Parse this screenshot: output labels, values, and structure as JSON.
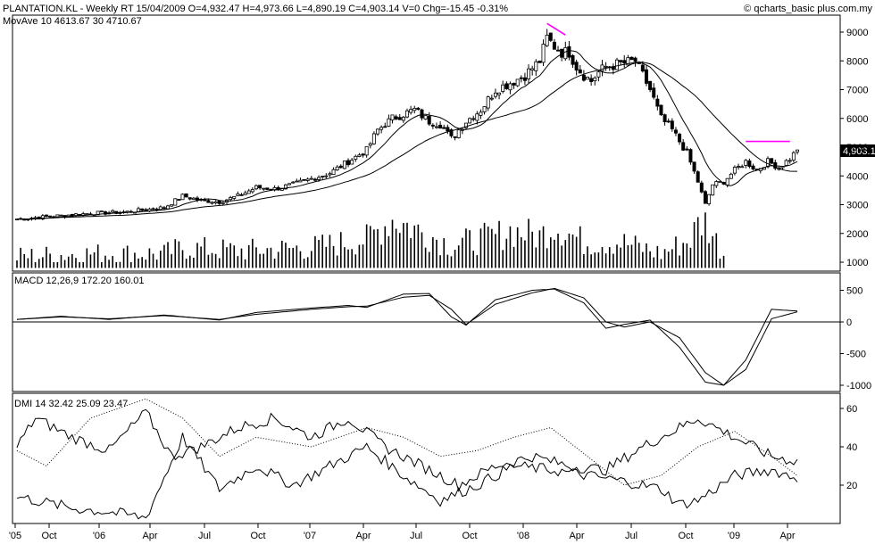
{
  "header": {
    "title": "PLANTATION.KL - Weekly RT  15/04/2009  O=4,932.47  H=4,973.66  L=4,890.19  C=4,903.14  V=0  Chg=-15.45  -0.31%",
    "mov_avg": "MovAve 10  4613.67   30  4710.67",
    "copyright": "© qcharts_basic plus.com.my"
  },
  "price_tag": "4,903.1",
  "chart_data": [
    {
      "type": "candlestick",
      "title": "PLANTATION.KL - Weekly RT",
      "y_ticks": [
        "9000",
        "8000",
        "7000",
        "6000",
        "5000",
        "4000",
        "3000",
        "2000",
        "1000"
      ],
      "ylim": [
        800,
        9500
      ],
      "x_ticks": [
        "'05",
        "Oct",
        "'06",
        "Apr",
        "Jul",
        "Oct",
        "'07",
        "Apr",
        "Jul",
        "Oct",
        "'08",
        "Apr",
        "Jul",
        "Oct",
        "'09",
        "Apr"
      ],
      "close_anchors": [
        [
          0,
          2500
        ],
        [
          10,
          2600
        ],
        [
          20,
          2700
        ],
        [
          30,
          2750
        ],
        [
          40,
          2900
        ],
        [
          45,
          3300
        ],
        [
          50,
          3150
        ],
        [
          55,
          3100
        ],
        [
          60,
          3300
        ],
        [
          65,
          3600
        ],
        [
          70,
          3550
        ],
        [
          75,
          3700
        ],
        [
          80,
          3900
        ],
        [
          85,
          4100
        ],
        [
          90,
          4500
        ],
        [
          95,
          4900
        ],
        [
          98,
          5600
        ],
        [
          102,
          6000
        ],
        [
          108,
          6300
        ],
        [
          112,
          5900
        ],
        [
          115,
          5800
        ],
        [
          118,
          5300
        ],
        [
          122,
          5900
        ],
        [
          126,
          6300
        ],
        [
          130,
          7000
        ],
        [
          135,
          7300
        ],
        [
          138,
          7500
        ],
        [
          142,
          8000
        ],
        [
          144,
          8800
        ],
        [
          146,
          8500
        ],
        [
          148,
          8300
        ],
        [
          150,
          8300
        ],
        [
          152,
          7800
        ],
        [
          154,
          7500
        ],
        [
          156,
          7300
        ],
        [
          158,
          7600
        ],
        [
          160,
          7800
        ],
        [
          164,
          7900
        ],
        [
          168,
          8000
        ],
        [
          170,
          7500
        ],
        [
          172,
          7000
        ],
        [
          175,
          6000
        ],
        [
          178,
          5600
        ],
        [
          182,
          4800
        ],
        [
          185,
          3800
        ],
        [
          187,
          3000
        ],
        [
          189,
          3700
        ],
        [
          192,
          3800
        ],
        [
          195,
          4200
        ],
        [
          198,
          4500
        ],
        [
          201,
          4200
        ],
        [
          204,
          4500
        ],
        [
          207,
          4300
        ],
        [
          210,
          4600
        ],
        [
          212,
          4903
        ]
      ],
      "ma10_final": 4613.67,
      "ma30_final": 4710.67,
      "volume_anchors": [
        [
          0,
          1200
        ],
        [
          20,
          1300
        ],
        [
          40,
          1300
        ],
        [
          45,
          1500
        ],
        [
          60,
          1400
        ],
        [
          80,
          1500
        ],
        [
          95,
          1800
        ],
        [
          102,
          2500
        ],
        [
          118,
          1600
        ],
        [
          130,
          1900
        ],
        [
          134,
          2100
        ],
        [
          142,
          1900
        ],
        [
          146,
          2300
        ],
        [
          154,
          1700
        ],
        [
          164,
          1700
        ],
        [
          175,
          1300
        ],
        [
          183,
          1800
        ],
        [
          185,
          2300
        ],
        [
          187,
          2400
        ],
        [
          192,
          1300
        ]
      ],
      "annotations": [
        "trendline-2008-peak",
        "trendline-2009-resistance"
      ]
    },
    {
      "type": "line",
      "title": "MACD 12,26,9  172.20  160.01",
      "y_ticks": [
        "500",
        "0",
        "-500",
        "-1000"
      ],
      "ylim": [
        -1100,
        600
      ],
      "series": [
        {
          "values": [
            [
              0,
              40
            ],
            [
              12,
              90
            ],
            [
              25,
              40
            ],
            [
              40,
              110
            ],
            [
              55,
              30
            ],
            [
              65,
              150
            ],
            [
              80,
              220
            ],
            [
              90,
              260
            ],
            [
              95,
              230
            ],
            [
              105,
              440
            ],
            [
              112,
              450
            ],
            [
              118,
              80
            ],
            [
              122,
              -50
            ],
            [
              130,
              350
            ],
            [
              140,
              500
            ],
            [
              146,
              520
            ],
            [
              154,
              300
            ],
            [
              160,
              -100
            ],
            [
              165,
              -40
            ],
            [
              172,
              30
            ],
            [
              180,
              -400
            ],
            [
              187,
              -950
            ],
            [
              192,
              -1000
            ],
            [
              198,
              -600
            ],
            [
              205,
              200
            ],
            [
              212,
              172
            ]
          ]
        },
        {
          "values": [
            [
              0,
              40
            ],
            [
              12,
              80
            ],
            [
              25,
              50
            ],
            [
              40,
              100
            ],
            [
              55,
              40
            ],
            [
              65,
              120
            ],
            [
              80,
              200
            ],
            [
              90,
              240
            ],
            [
              95,
              250
            ],
            [
              105,
              390
            ],
            [
              112,
              420
            ],
            [
              118,
              200
            ],
            [
              122,
              -40
            ],
            [
              130,
              280
            ],
            [
              140,
              460
            ],
            [
              146,
              530
            ],
            [
              154,
              380
            ],
            [
              160,
              0
            ],
            [
              165,
              -80
            ],
            [
              172,
              0
            ],
            [
              180,
              -250
            ],
            [
              187,
              -800
            ],
            [
              192,
              -1000
            ],
            [
              198,
              -750
            ],
            [
              205,
              50
            ],
            [
              212,
              160
            ]
          ]
        }
      ]
    },
    {
      "type": "line",
      "title": "DMI 14  32.42  25.09  23.47",
      "y_ticks": [
        "60",
        "40",
        "20"
      ],
      "ylim": [
        0,
        70
      ],
      "series": [
        {
          "values": [
            [
              0,
              38
            ],
            [
              8,
              30
            ],
            [
              20,
              55
            ],
            [
              35,
              65
            ],
            [
              45,
              55
            ],
            [
              55,
              35
            ],
            [
              65,
              45
            ],
            [
              80,
              40
            ],
            [
              95,
              50
            ],
            [
              105,
              45
            ],
            [
              115,
              35
            ],
            [
              125,
              38
            ],
            [
              135,
              45
            ],
            [
              145,
              50
            ],
            [
              155,
              35
            ],
            [
              165,
              20
            ],
            [
              175,
              25
            ],
            [
              185,
              40
            ],
            [
              195,
              48
            ],
            [
              205,
              35
            ],
            [
              212,
              25
            ]
          ]
        },
        {
          "values": [
            [
              0,
              40
            ],
            [
              5,
              55
            ],
            [
              15,
              45
            ],
            [
              25,
              38
            ],
            [
              35,
              58
            ],
            [
              42,
              35
            ],
            [
              50,
              40
            ],
            [
              60,
              50
            ],
            [
              70,
              55
            ],
            [
              80,
              45
            ],
            [
              90,
              55
            ],
            [
              100,
              40
            ],
            [
              110,
              30
            ],
            [
              120,
              20
            ],
            [
              130,
              30
            ],
            [
              140,
              35
            ],
            [
              150,
              30
            ],
            [
              160,
              28
            ],
            [
              170,
              40
            ],
            [
              180,
              50
            ],
            [
              185,
              55
            ],
            [
              195,
              45
            ],
            [
              205,
              35
            ],
            [
              212,
              32.42
            ]
          ]
        },
        {
          "values": [
            [
              0,
              14
            ],
            [
              15,
              8
            ],
            [
              25,
              6
            ],
            [
              35,
              3
            ],
            [
              45,
              45
            ],
            [
              55,
              18
            ],
            [
              65,
              30
            ],
            [
              75,
              20
            ],
            [
              85,
              30
            ],
            [
              95,
              40
            ],
            [
              105,
              25
            ],
            [
              115,
              12
            ],
            [
              125,
              20
            ],
            [
              135,
              30
            ],
            [
              145,
              28
            ],
            [
              155,
              25
            ],
            [
              165,
              22
            ],
            [
              175,
              18
            ],
            [
              180,
              10
            ],
            [
              185,
              12
            ],
            [
              195,
              25
            ],
            [
              205,
              28
            ],
            [
              212,
              23.47
            ]
          ]
        }
      ]
    }
  ]
}
